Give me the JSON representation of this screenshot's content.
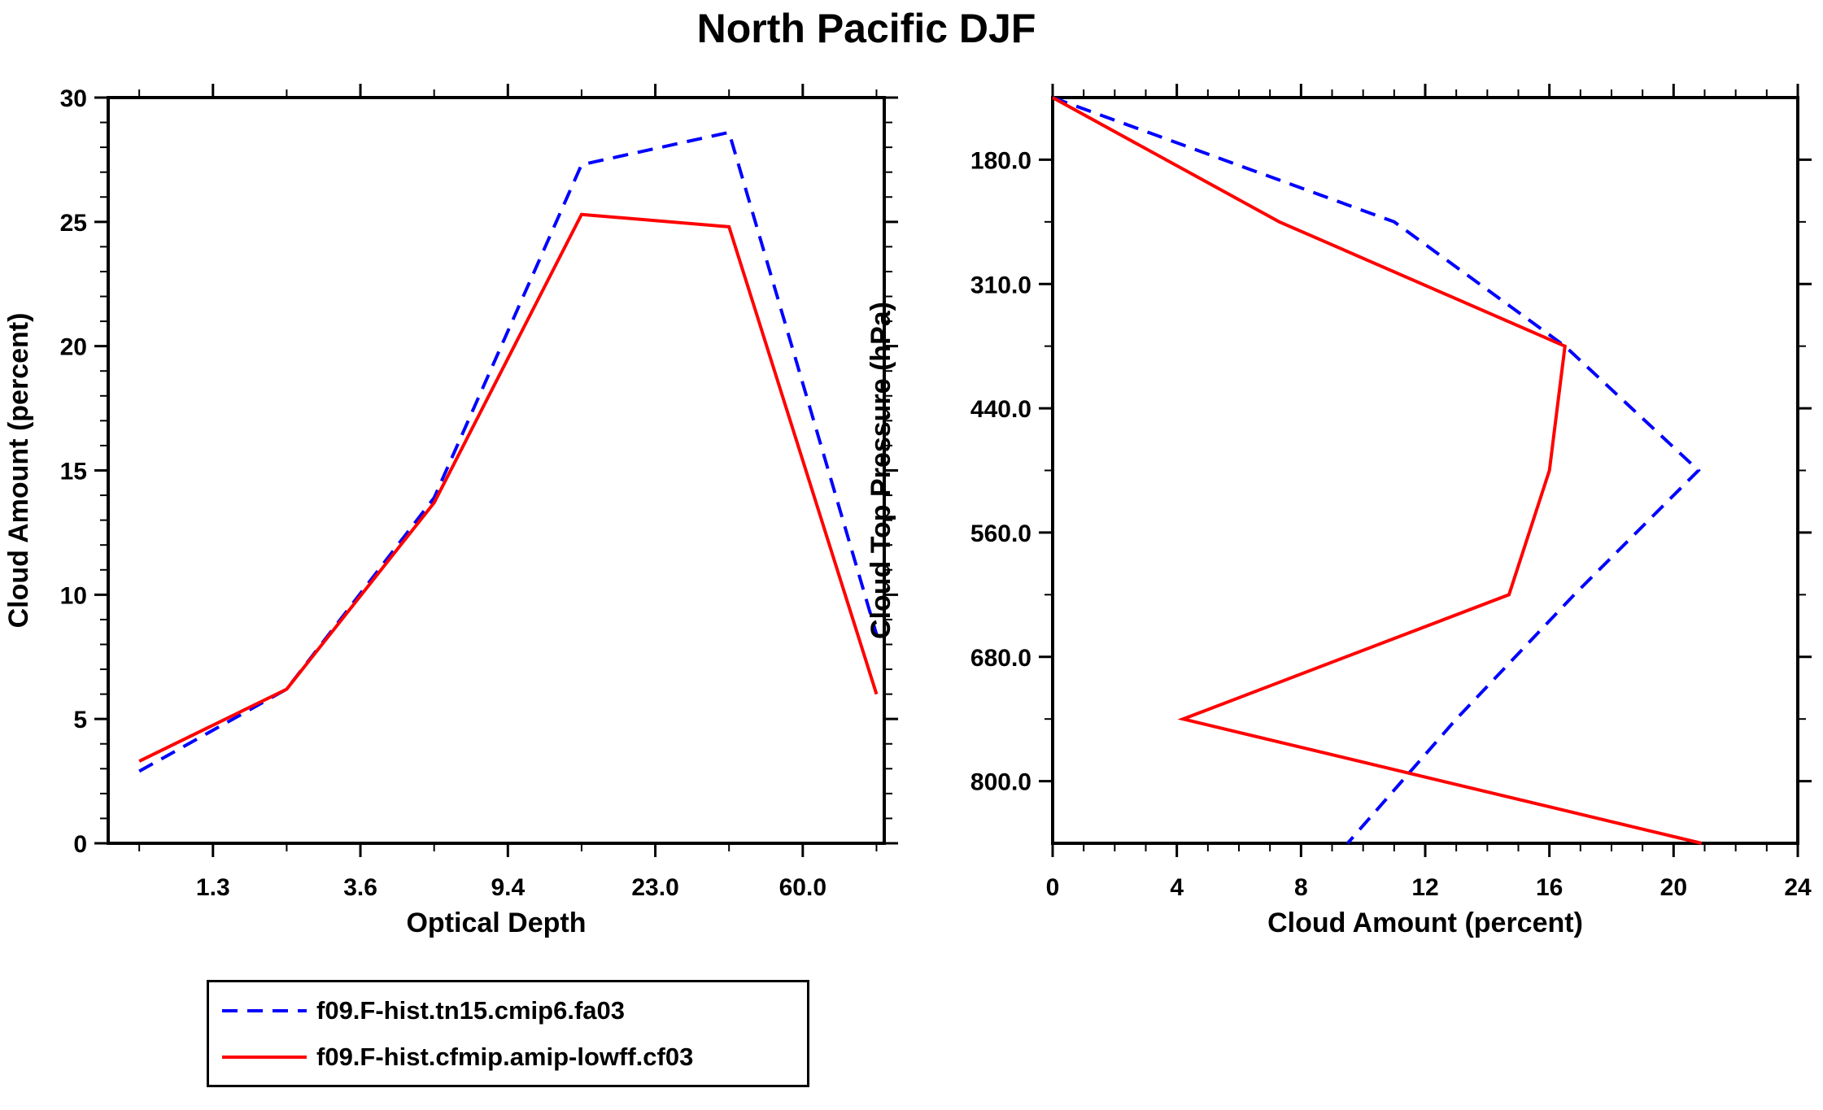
{
  "title": "North Pacific DJF",
  "legend": {
    "entries": [
      {
        "label": "f09.F-hist.tn15.cmip6.fa03",
        "color": "#0000ff",
        "style": "dashed"
      },
      {
        "label": "f09.F-hist.cfmip.amip-lowff.cf03",
        "color": "#ff0000",
        "style": "solid"
      }
    ]
  },
  "chart_data": [
    {
      "id": "optical-depth-panel",
      "type": "line",
      "title": "North Pacific DJF",
      "xlabel": "Optical Depth",
      "ylabel": "Cloud Amount (percent)",
      "x_tick_labels": [
        "1.3",
        "3.6",
        "9.4",
        "23.0",
        "60.0"
      ],
      "x_bin_centers_tau_est": [
        0.8,
        2.45,
        6.5,
        16.2,
        41.5,
        220
      ],
      "ylim": [
        0,
        30
      ],
      "y_ticks": [
        0,
        5,
        10,
        15,
        20,
        25,
        30
      ],
      "grid": false,
      "legend_position": "below-left",
      "series": [
        {
          "name": "f09.F-hist.tn15.cmip6.fa03",
          "color": "#0000ff",
          "dash": true,
          "values": [
            2.9,
            6.2,
            13.9,
            27.3,
            28.6,
            8.4
          ]
        },
        {
          "name": "f09.F-hist.cfmip.amip-lowff.cf03",
          "color": "#ff0000",
          "dash": false,
          "values": [
            3.3,
            6.2,
            13.7,
            25.3,
            24.8,
            6.0
          ]
        }
      ]
    },
    {
      "id": "cloud-top-pressure-panel",
      "type": "line",
      "title": "North Pacific DJF",
      "xlabel": "Cloud Amount (percent)",
      "ylabel": "Cloud Top Pressure (hPa)",
      "xlim": [
        0,
        24
      ],
      "x_ticks": [
        0,
        4,
        8,
        12,
        16,
        20,
        24
      ],
      "y_tick_labels": [
        "180.0",
        "310.0",
        "440.0",
        "560.0",
        "680.0",
        "800.0"
      ],
      "y_bin_centers_hpa_est": [
        115,
        245,
        375,
        500,
        620,
        740,
        900
      ],
      "y_axis_inverted_downward": true,
      "grid": false,
      "series": [
        {
          "name": "f09.F-hist.tn15.cmip6.fa03",
          "color": "#0000ff",
          "dash": true,
          "values": [
            0.0,
            11.0,
            16.5,
            20.8,
            16.8,
            13.0,
            9.5
          ]
        },
        {
          "name": "f09.F-hist.cfmip.amip-lowff.cf03",
          "color": "#ff0000",
          "dash": false,
          "values": [
            0.0,
            7.3,
            16.5,
            16.0,
            14.7,
            4.2,
            20.9
          ]
        }
      ]
    }
  ]
}
